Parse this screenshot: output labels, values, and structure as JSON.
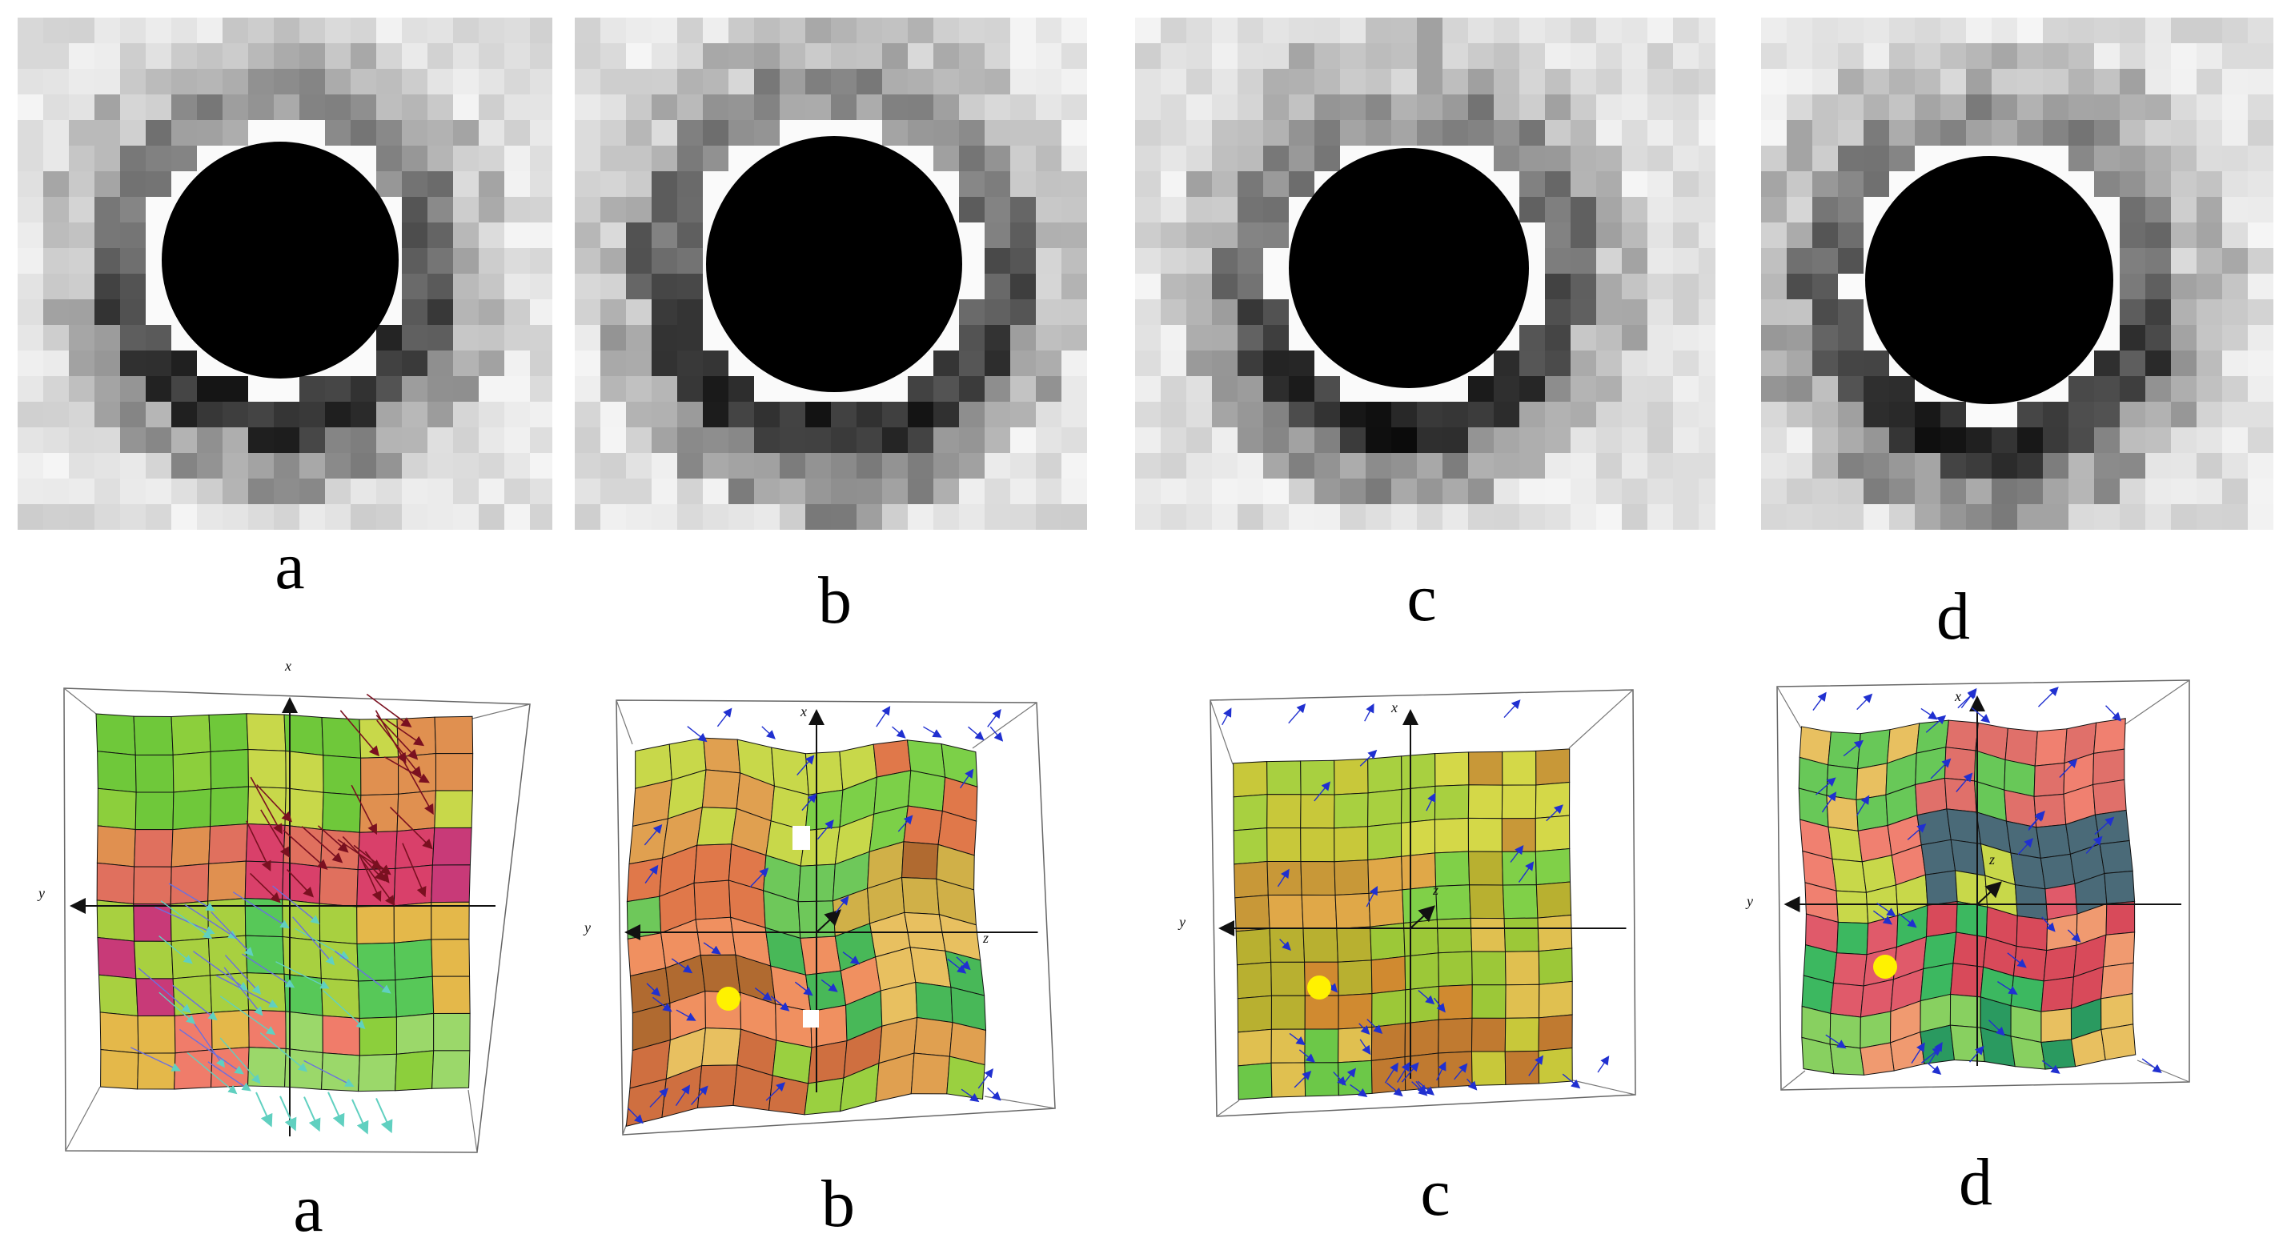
{
  "top_row": {
    "labels": [
      "a",
      "b",
      "c",
      "d"
    ]
  },
  "bottom_row": {
    "labels": [
      "a",
      "b",
      "c",
      "d"
    ],
    "axis_labels": {
      "x": "x",
      "y": "y",
      "z": "z"
    }
  },
  "colors": {
    "background": "#ffffff",
    "hole": "#000000",
    "marker_dot": "#fff200",
    "arrow_blue": "#2030d0",
    "arrow_dark_red": "#7a1020",
    "arrow_cyan": "#60d0c0",
    "mesh_line": "#111111"
  }
}
